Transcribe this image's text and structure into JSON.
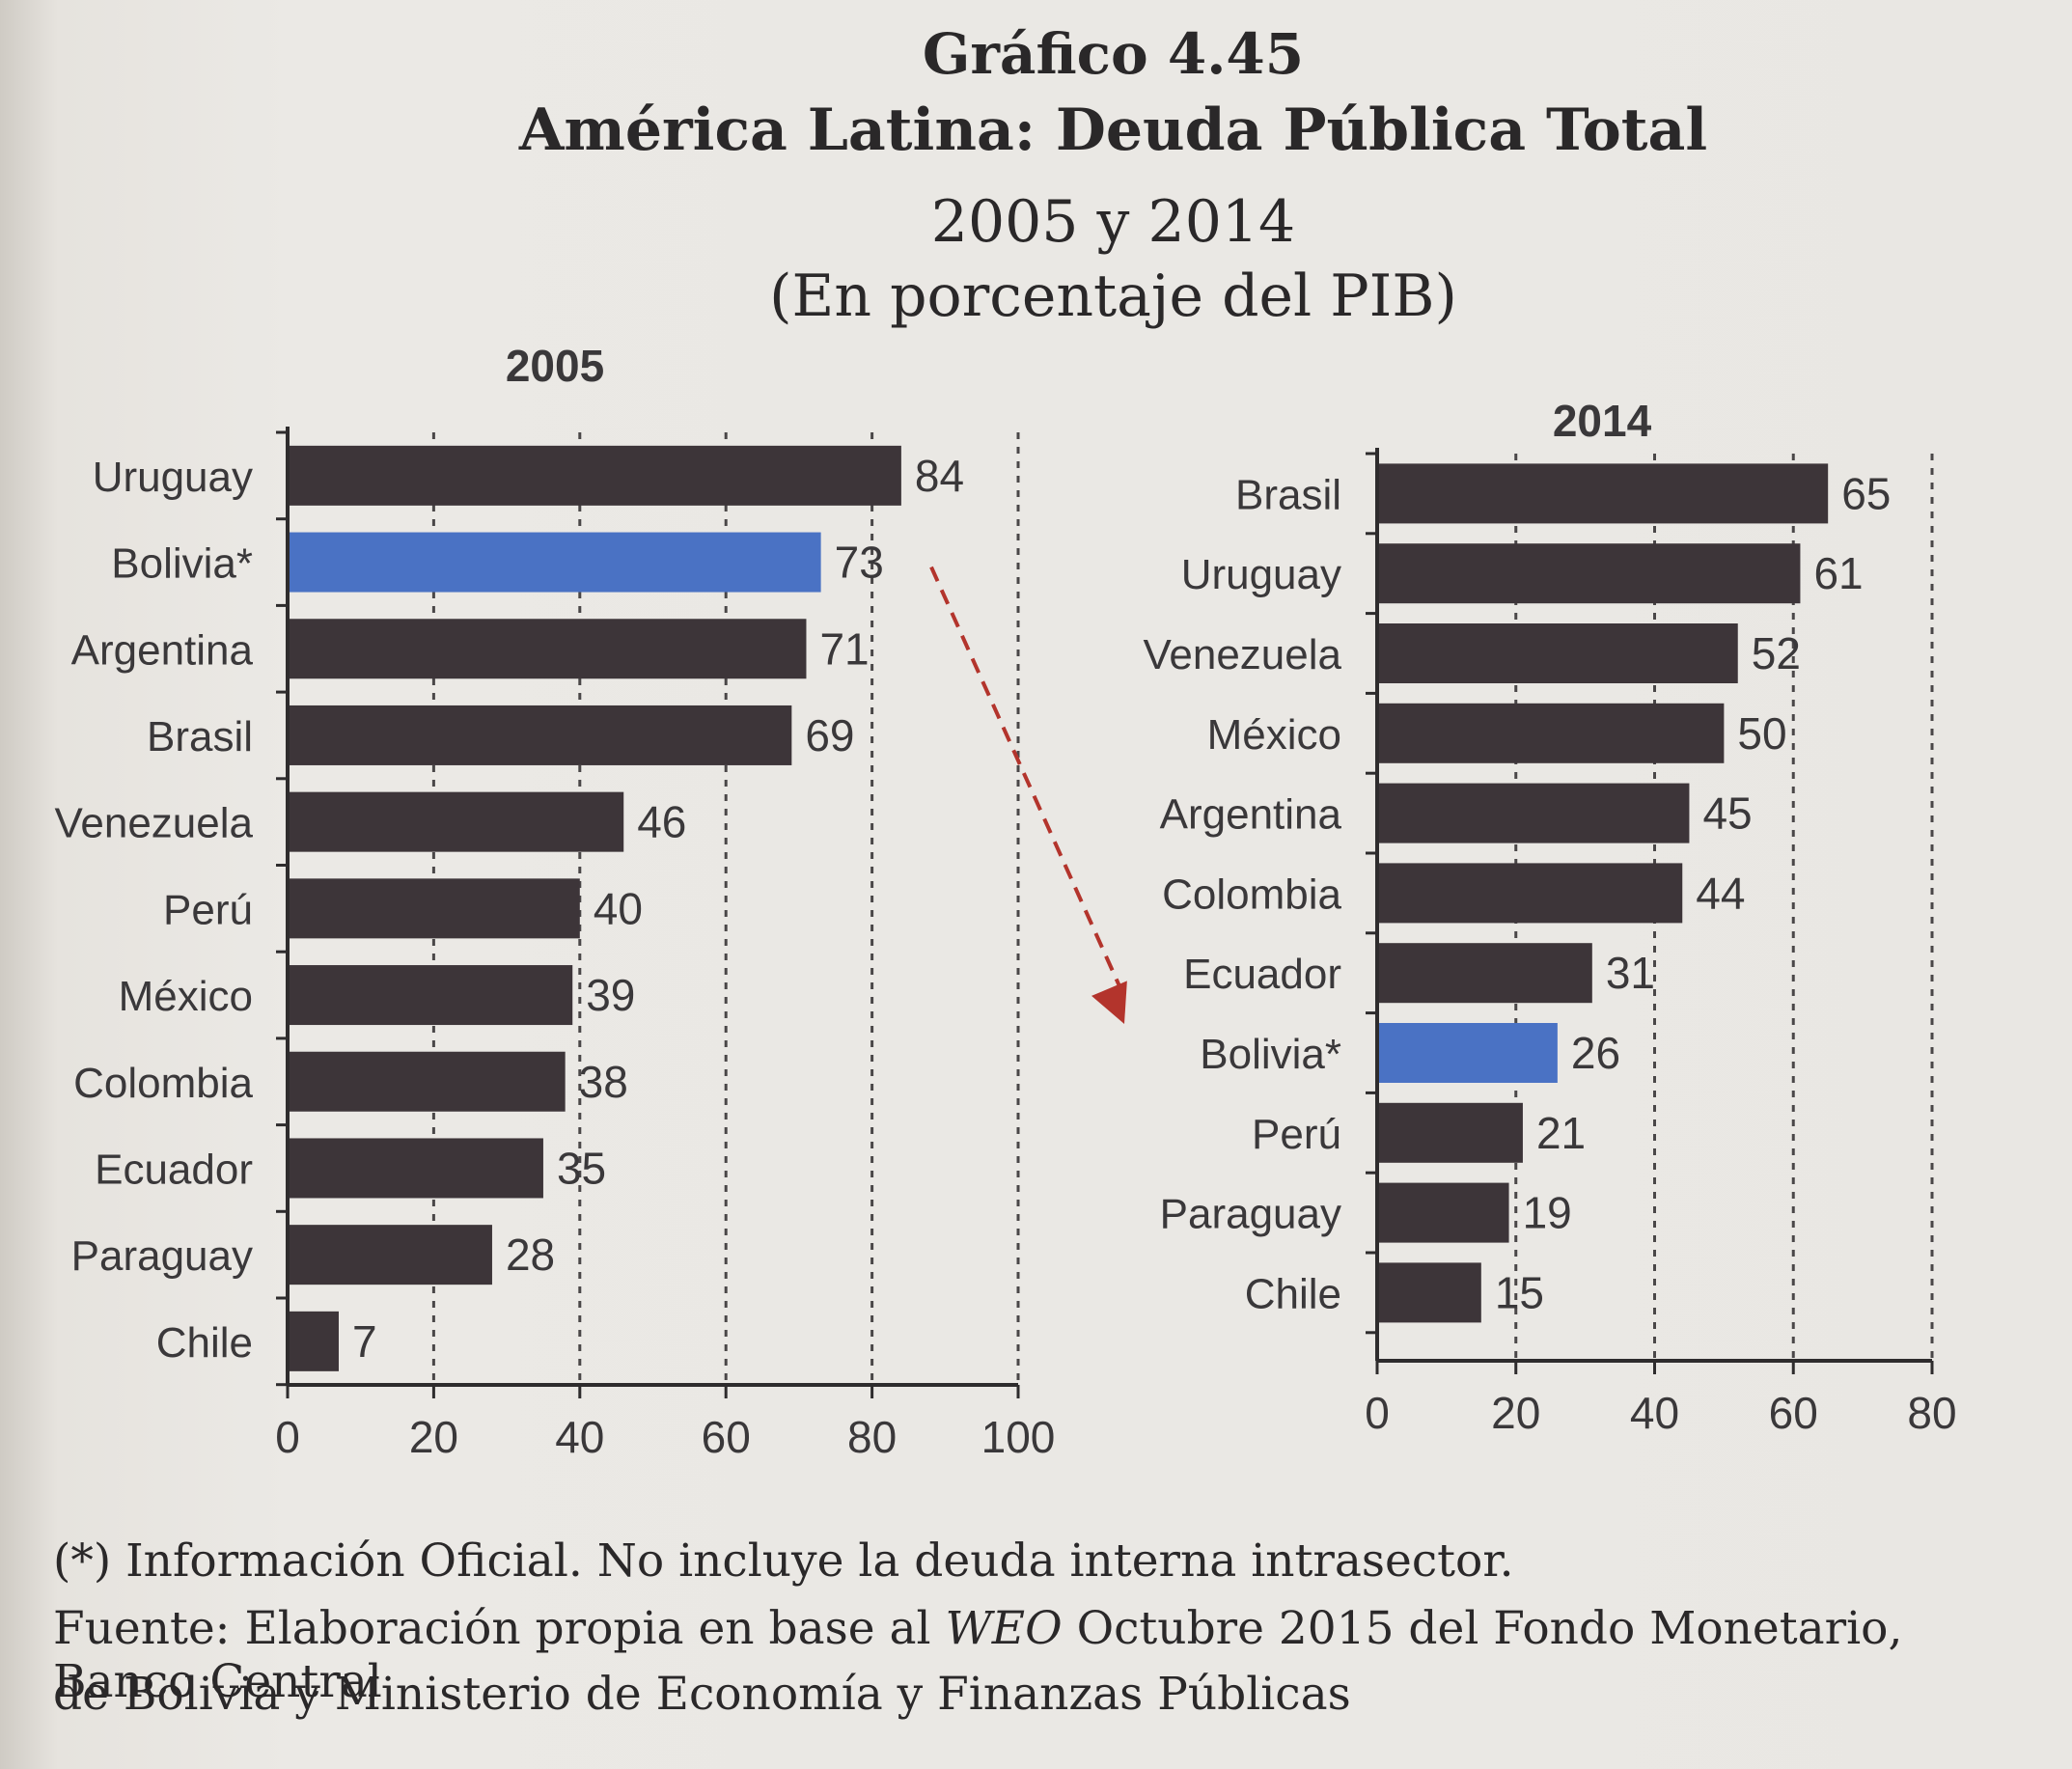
{
  "header": {
    "figure_number": "Gráfico 4.45",
    "title": "América Latina: Deuda Pública Total",
    "years": "2005 y 2014",
    "units": "(En porcentaje del PIB)"
  },
  "footer": {
    "note": "(*) Información Oficial. No incluye la deuda interna intrasector.",
    "source_prefix": "Fuente: Elaboración propia en base al ",
    "source_italic": "WEO",
    "source_suffix": " Octubre 2015 del Fondo Monetario, Banco Central",
    "source_line2": "de Bolivia y Ministerio de Economía y Finanzas Públicas"
  },
  "colors": {
    "bar": "#3d3539",
    "highlight": "#4a72c4",
    "arrow": "#b3342c",
    "axis": "#2e2c2d",
    "grid": "#4a4748"
  },
  "chart_data": [
    {
      "type": "bar",
      "orientation": "horizontal",
      "title": "2005",
      "categories": [
        "Uruguay",
        "Bolivia*",
        "Argentina",
        "Brasil",
        "Venezuela",
        "Perú",
        "México",
        "Colombia",
        "Ecuador",
        "Paraguay",
        "Chile"
      ],
      "values": [
        84,
        73,
        71,
        69,
        46,
        40,
        39,
        38,
        35,
        28,
        7
      ],
      "highlight": "Bolivia*",
      "xlim": [
        0,
        100
      ],
      "xticks": [
        0,
        20,
        40,
        60,
        80,
        100
      ],
      "grid": true
    },
    {
      "type": "bar",
      "orientation": "horizontal",
      "title": "2014",
      "categories": [
        "Brasil",
        "Uruguay",
        "Venezuela",
        "México",
        "Argentina",
        "Colombia",
        "Ecuador",
        "Bolivia*",
        "Perú",
        "Paraguay",
        "Chile"
      ],
      "values": [
        65,
        61,
        52,
        50,
        45,
        44,
        31,
        26,
        21,
        19,
        15
      ],
      "highlight": "Bolivia*",
      "xlim": [
        0,
        80
      ],
      "xticks": [
        0,
        20,
        40,
        60,
        80
      ],
      "grid": true
    }
  ]
}
